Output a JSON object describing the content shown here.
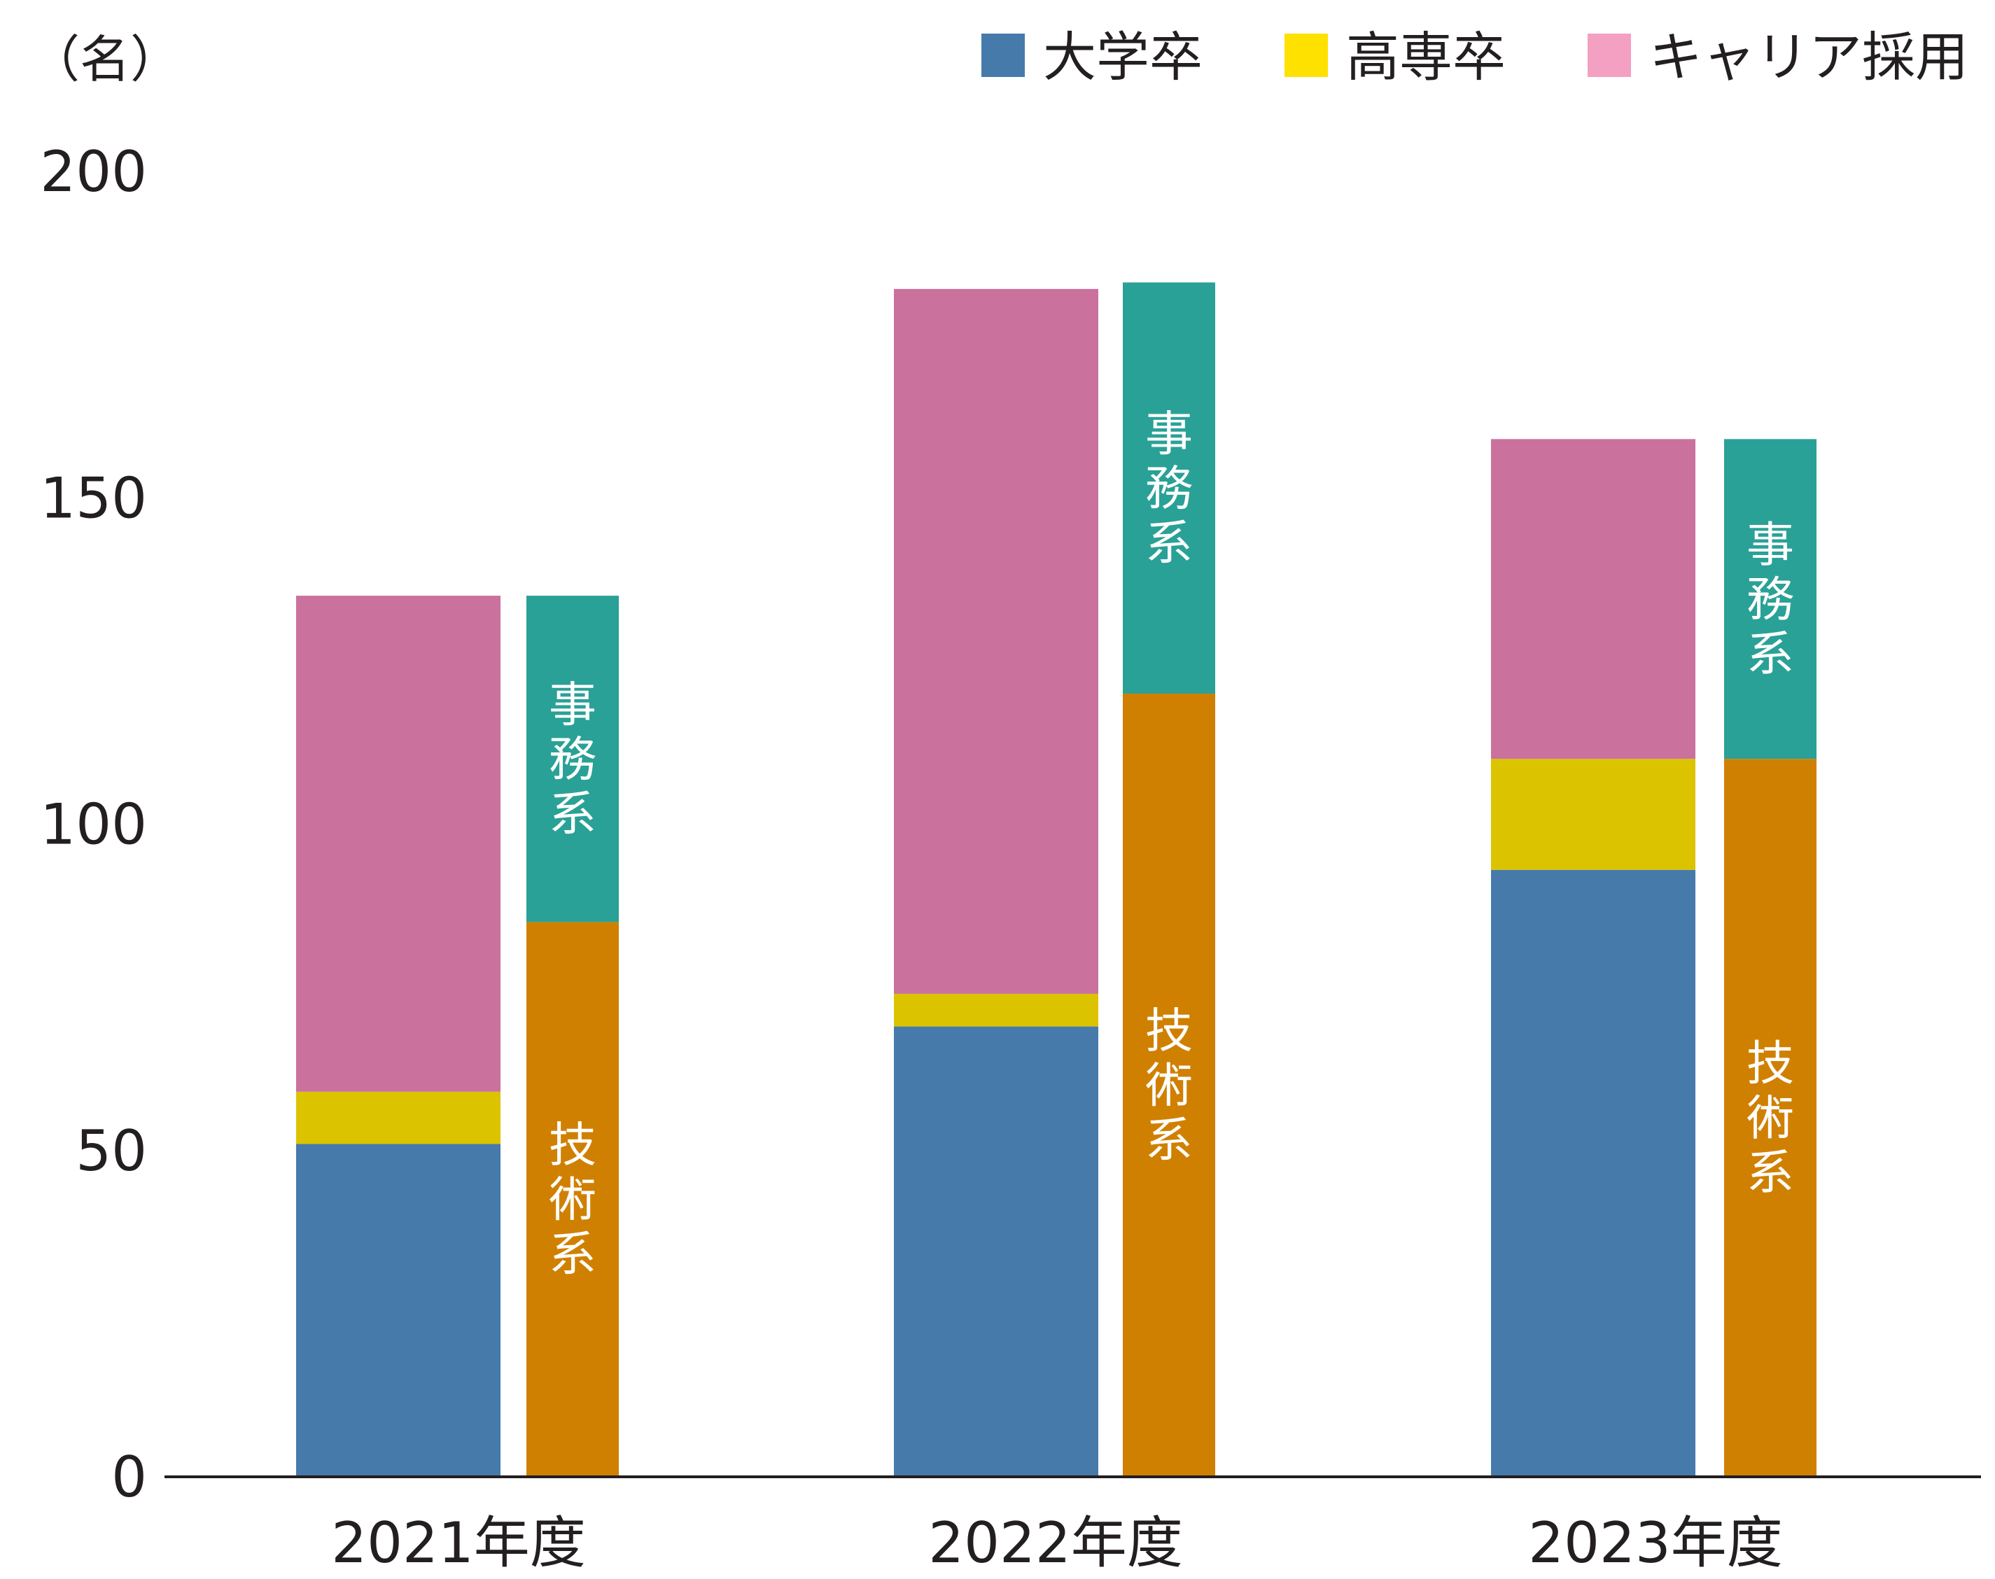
{
  "chart_data": {
    "type": "bar",
    "stacked": true,
    "title": "",
    "unit_label": "（名）",
    "xlabel": "",
    "ylabel": "",
    "ylim": [
      0,
      200
    ],
    "yticks": [
      0,
      50,
      100,
      150,
      200
    ],
    "grid": false,
    "legend_position": "top-right",
    "categories": [
      "2021年度",
      "2022年度",
      "2023年度"
    ],
    "legend": [
      {
        "name": "大学卒",
        "color": "#467aab"
      },
      {
        "name": "高専卒",
        "color": "#ffe100"
      },
      {
        "name": "キャリア採用",
        "color": "#f4a0c2"
      }
    ],
    "groups": [
      {
        "stack": "by-background",
        "series": [
          {
            "name": "大学卒",
            "color": "#467aab",
            "values": [
              51,
              69,
              93
            ]
          },
          {
            "name": "高専卒",
            "color": "#dcc300",
            "values": [
              8,
              5,
              17
            ]
          },
          {
            "name": "キャリア採用",
            "color": "#cb719d",
            "values": [
              76,
              108,
              49
            ]
          }
        ]
      },
      {
        "stack": "by-field",
        "series": [
          {
            "name": "技術系",
            "color": "#d08000",
            "values": [
              85,
              120,
              110
            ]
          },
          {
            "name": "事務系",
            "color": "#2aa196",
            "values": [
              50,
              63,
              49
            ]
          }
        ]
      }
    ]
  }
}
